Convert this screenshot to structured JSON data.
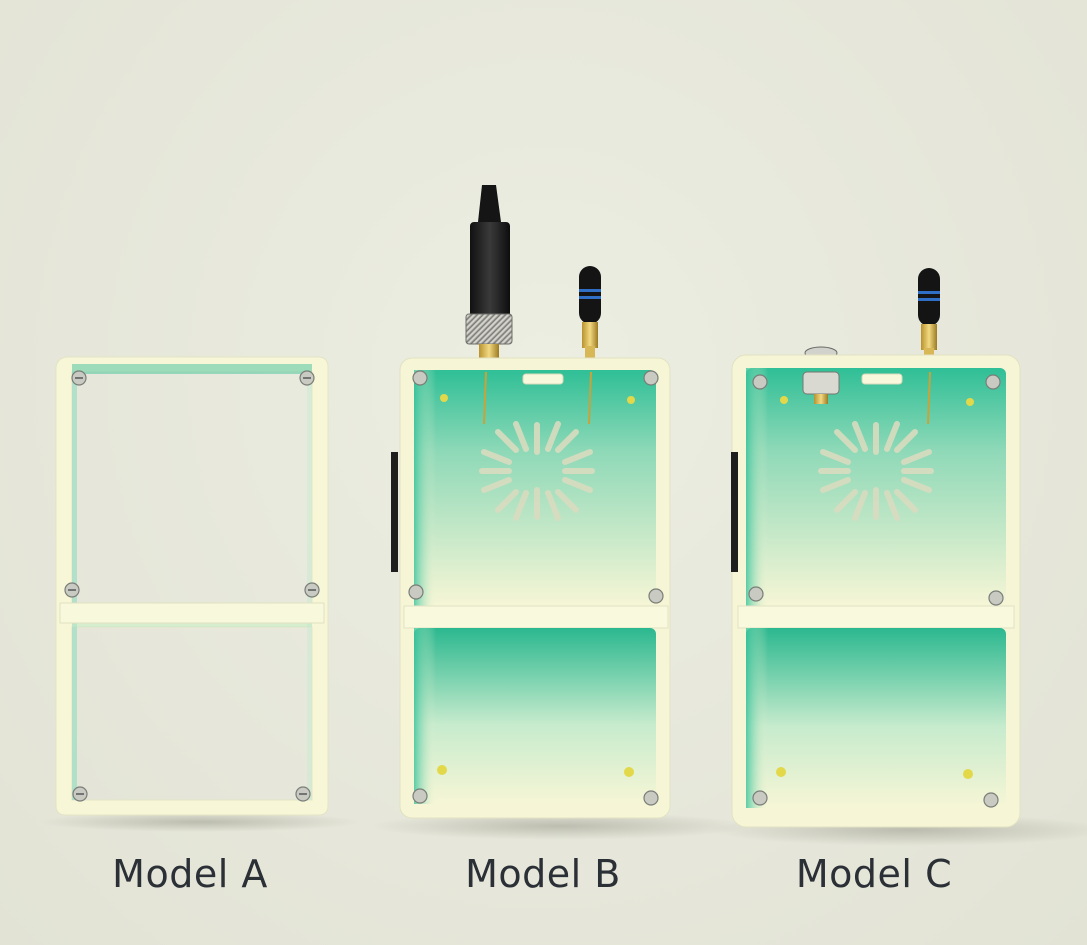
{
  "models": [
    {
      "label": "Model A"
    },
    {
      "label": "Model B"
    },
    {
      "label": "Model C"
    }
  ]
}
